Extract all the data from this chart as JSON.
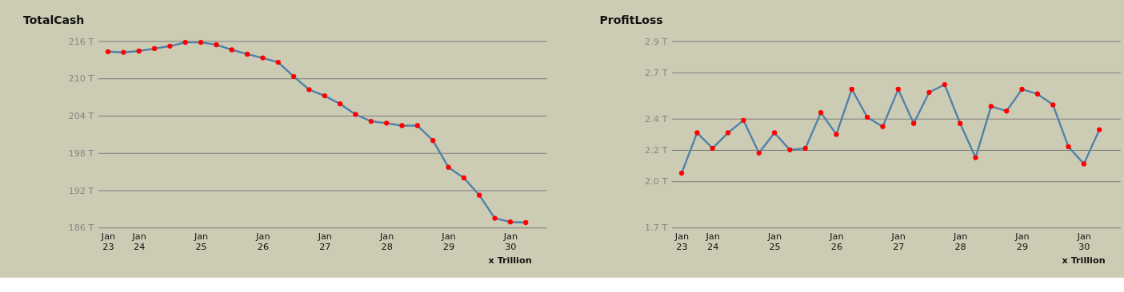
{
  "chart_data": [
    {
      "type": "line",
      "title": "TotalCash",
      "annotations": [
        "x Trillion"
      ],
      "categories": [
        "Jan 23",
        null,
        "Jan 24",
        null,
        null,
        null,
        "Jan 25",
        null,
        null,
        null,
        "Jan 26",
        null,
        null,
        null,
        "Jan 27",
        null,
        null,
        null,
        "Jan 28",
        null,
        null,
        null,
        "Jan 29",
        null,
        null,
        null,
        "Jan 30",
        null
      ],
      "series": [
        {
          "color": "#5080a8",
          "marker": "none",
          "values": [
            214.3,
            214.2,
            214.4,
            214.8,
            215.2,
            215.8,
            215.8,
            215.4,
            214.6,
            213.9,
            213.3,
            212.6,
            210.3,
            208.2,
            207.2,
            205.9,
            204.2,
            203.1,
            202.8,
            202.4,
            202.4,
            200.0,
            195.7,
            194.0,
            191.2,
            187.5,
            186.9,
            186.8
          ]
        },
        {
          "type": "scatter",
          "color": "#ff0000",
          "values": [
            214.3,
            214.2,
            214.4,
            214.8,
            215.2,
            215.8,
            215.8,
            215.4,
            214.6,
            213.9,
            213.3,
            212.6,
            210.3,
            208.2,
            207.2,
            205.9,
            204.2,
            203.1,
            202.8,
            202.4,
            202.4,
            200.0,
            195.7,
            194.0,
            191.2,
            187.5,
            186.9,
            186.8
          ]
        }
      ],
      "ylim": [
        186,
        216
      ],
      "yticks": [
        {
          "value": 186,
          "label": "186 T"
        },
        {
          "value": 192,
          "label": "192 T"
        },
        {
          "value": 198,
          "label": "198 T"
        },
        {
          "value": 204,
          "label": "204 T"
        },
        {
          "value": 210,
          "label": "210 T"
        },
        {
          "value": 216,
          "label": "216 T"
        }
      ],
      "grid": "y",
      "marker": "circle",
      "legend": false
    },
    {
      "type": "line",
      "title": "ProfitLoss",
      "annotations": [
        "x Trillion"
      ],
      "categories": [
        "Jan 23",
        null,
        "Jan 24",
        null,
        null,
        null,
        "Jan 25",
        null,
        null,
        null,
        "Jan 26",
        null,
        null,
        null,
        "Jan 27",
        null,
        null,
        null,
        "Jan 28",
        null,
        null,
        null,
        "Jan 29",
        null,
        null,
        null,
        "Jan 30",
        null
      ],
      "series": [
        {
          "color": "#5080a8",
          "marker": "none",
          "values": [
            2.05,
            2.31,
            2.21,
            2.31,
            2.39,
            2.18,
            2.31,
            2.2,
            2.21,
            2.44,
            2.3,
            2.59,
            2.41,
            2.35,
            2.59,
            2.37,
            2.57,
            2.62,
            2.37,
            2.15,
            2.48,
            2.45,
            2.59,
            2.56,
            2.49,
            2.22,
            2.11,
            2.33
          ]
        },
        {
          "type": "scatter",
          "color": "#ff0000",
          "values": [
            2.05,
            2.31,
            2.21,
            2.31,
            2.39,
            2.18,
            2.31,
            2.2,
            2.21,
            2.44,
            2.3,
            2.59,
            2.41,
            2.35,
            2.59,
            2.37,
            2.57,
            2.62,
            2.37,
            2.15,
            2.48,
            2.45,
            2.59,
            2.56,
            2.49,
            2.22,
            2.11,
            2.33
          ]
        }
      ],
      "ylim": [
        1.7,
        2.9
      ],
      "yticks": [
        {
          "value": 1.7,
          "label": "1.7 T"
        },
        {
          "value": 2.0,
          "label": "2.0 T"
        },
        {
          "value": 2.2,
          "label": "2.2 T"
        },
        {
          "value": 2.4,
          "label": "2.4 T"
        },
        {
          "value": 2.7,
          "label": "2.7 T"
        },
        {
          "value": 2.9,
          "label": "2.9 T"
        }
      ],
      "grid": "y",
      "marker": "circle",
      "legend": false
    }
  ]
}
